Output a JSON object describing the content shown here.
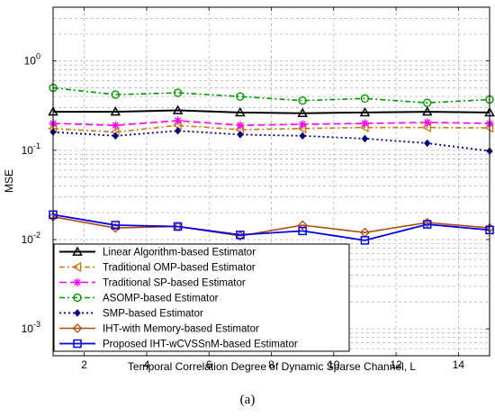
{
  "caption": "(a)",
  "chart_data": {
    "type": "line",
    "title": "",
    "xlabel": "Temporal Correlation Degree of Dynamic Sparse Channel, L",
    "ylabel": "MSE",
    "xlim": [
      1,
      15
    ],
    "ylim": [
      0.0005,
      4
    ],
    "yscale": "log",
    "grid": true,
    "legend_position": "bottom-left",
    "x_ticks": [
      2,
      4,
      6,
      8,
      10,
      12,
      14
    ],
    "y_ticks": [
      {
        "value": 0.001,
        "label": "10^-3",
        "base": "10",
        "exp": "-3"
      },
      {
        "value": 0.01,
        "label": "10^-2",
        "base": "10",
        "exp": "-2"
      },
      {
        "value": 0.1,
        "label": "10^-1",
        "base": "10",
        "exp": "-1"
      },
      {
        "value": 1,
        "label": "10^0",
        "base": "10",
        "exp": "0"
      }
    ],
    "x": [
      1,
      3,
      5,
      7,
      9,
      11,
      13,
      15
    ],
    "series": [
      {
        "name": "Linear Algorithm-based Estimator",
        "color": "#000000",
        "marker": "triangle",
        "dash": "",
        "width": 2,
        "values": [
          0.27,
          0.27,
          0.28,
          0.265,
          0.26,
          0.265,
          0.27,
          0.265
        ]
      },
      {
        "name": "Traditional OMP-based Estimator",
        "color": "#c87814",
        "marker": "triangle-left",
        "dash": "6,3,2,3",
        "width": 1.6,
        "values": [
          0.175,
          0.16,
          0.19,
          0.17,
          0.175,
          0.18,
          0.18,
          0.178
        ]
      },
      {
        "name": "Traditional SP-based Estimator",
        "color": "#ff00ff",
        "marker": "star",
        "dash": "8,4",
        "width": 1.6,
        "values": [
          0.2,
          0.19,
          0.215,
          0.19,
          0.195,
          0.2,
          0.205,
          0.2
        ]
      },
      {
        "name": "ASOMP-based Estimator",
        "color": "#009900",
        "marker": "circle",
        "dash": "6,3,2,3",
        "width": 1.6,
        "values": [
          0.5,
          0.42,
          0.44,
          0.4,
          0.36,
          0.38,
          0.34,
          0.37
        ]
      },
      {
        "name": "SMP-based Estimator",
        "color": "#000080",
        "marker": "diamond",
        "dash": "2,3",
        "width": 1.8,
        "values": [
          0.16,
          0.145,
          0.165,
          0.15,
          0.145,
          0.135,
          0.12,
          0.098
        ]
      },
      {
        "name": "IHT-with Memory-based Estimator",
        "color": "#b04a0a",
        "marker": "diamond-open",
        "dash": "",
        "width": 1.6,
        "values": [
          0.018,
          0.0135,
          0.014,
          0.011,
          0.0145,
          0.012,
          0.0155,
          0.0135
        ]
      },
      {
        "name": "Proposed IHT-wCVSSnM-based Estimator",
        "color": "#0000ee",
        "marker": "square",
        "dash": "",
        "width": 1.8,
        "values": [
          0.019,
          0.0145,
          0.014,
          0.0113,
          0.0125,
          0.0098,
          0.0148,
          0.0128
        ]
      }
    ]
  }
}
